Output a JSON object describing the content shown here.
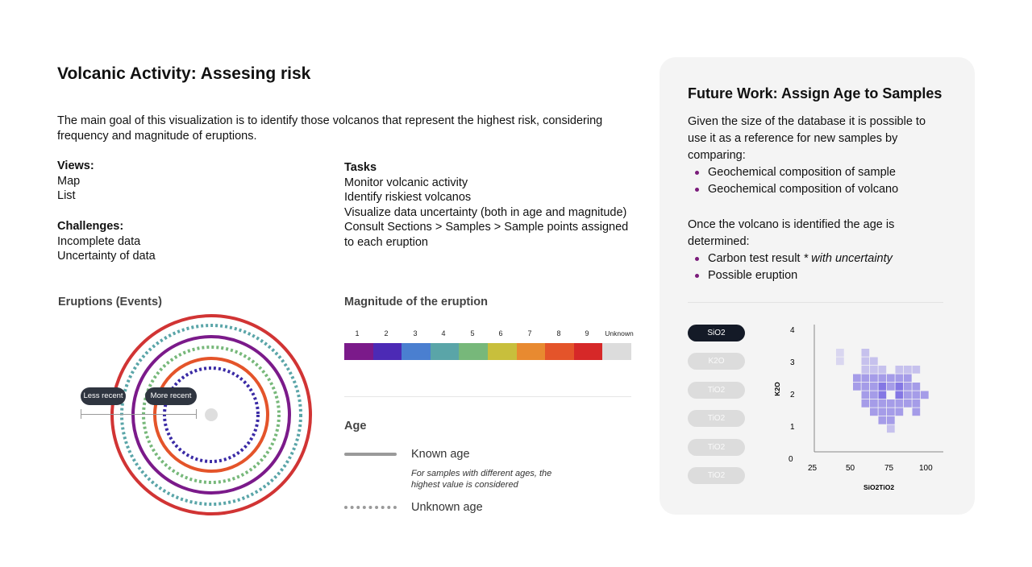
{
  "header": {
    "title": "Volcanic Activity: Assesing risk",
    "intro": "The main goal of this visualization is to identify those volcanos that represent the highest risk, considering frequency and magnitude of eruptions."
  },
  "views": {
    "heading": "Views:",
    "items": [
      "Map",
      "List"
    ]
  },
  "challenges": {
    "heading": "Challenges:",
    "items": [
      "Incomplete data",
      "Uncertainty of data"
    ]
  },
  "tasks": {
    "heading": "Tasks",
    "items": [
      "Monitor volcanic activity",
      "Identify riskiest volcanos",
      "Visualize data uncertainty (both in age and magnitude)",
      "Consult Sections > Samples > Sample points assigned to each eruption"
    ]
  },
  "eruptions": {
    "label": "Eruptions (Events)",
    "less_recent": "Less recent",
    "more_recent": "More recent"
  },
  "magnitude": {
    "label": "Magnitude of the eruption",
    "levels": [
      "1",
      "2",
      "3",
      "4",
      "5",
      "6",
      "7",
      "8",
      "9",
      "Unknown"
    ],
    "colors": [
      "#7b1a8a",
      "#4c2ab5",
      "#4a7fd0",
      "#5aa5a8",
      "#77b87a",
      "#c8bf3c",
      "#e88a30",
      "#e4542a",
      "#d62828",
      "#dcdcdc"
    ]
  },
  "age": {
    "label": "Age",
    "known": "Known age",
    "note": "For samples with different ages, the highest value is considered",
    "unknown": "Unknown age"
  },
  "future": {
    "title": "Future Work: Assign Age to Samples",
    "para1": "Given the size of the database it is possible to use it as a reference for new samples by comparing:",
    "list1": [
      "Geochemical composition of sample",
      "Geochemical composition of volcano"
    ],
    "para2": "Once the volcano is identified the age is determined:",
    "list2_item1_main": "Carbon test result",
    "list2_item1_em": " * with uncertainty",
    "list2_item2": "Possible eruption"
  },
  "element_tabs": [
    "SiO2",
    "K2O",
    "TiO2",
    "TiO2",
    "TiO2",
    "TiO2"
  ],
  "heatmap": {
    "y_ticks": [
      "4",
      "3",
      "2",
      "1",
      "0"
    ],
    "x_ticks": [
      "25",
      "50",
      "75",
      "100"
    ],
    "ylabel": "K2O",
    "xlabel": "SiO2TiO2",
    "color": "#7060e0"
  }
}
